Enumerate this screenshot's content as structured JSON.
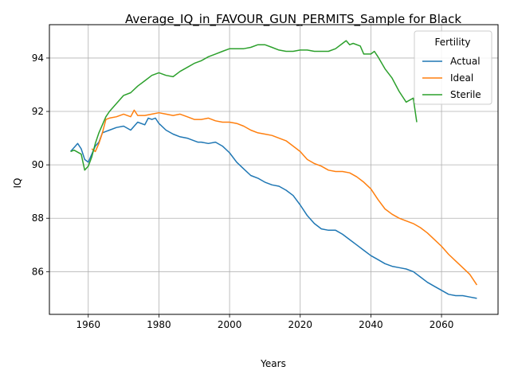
{
  "chart_data": {
    "type": "line",
    "title": "Average_IQ_in_FAVOUR_GUN_PERMITS_Sample for Black",
    "xlabel": "Years",
    "ylabel": "IQ",
    "xlim": [
      1949,
      2076
    ],
    "ylim": [
      84.4,
      95.25
    ],
    "xticks": [
      1960,
      1980,
      2000,
      2020,
      2040,
      2060
    ],
    "yticks": [
      86,
      88,
      90,
      92,
      94
    ],
    "grid": true,
    "legend": {
      "title": "Fertility",
      "placement": "top-right"
    },
    "series": [
      {
        "name": "Actual",
        "color": "#1f77b4",
        "x": [
          1955,
          1957,
          1958,
          1959,
          1960,
          1961,
          1962,
          1963,
          1964,
          1965,
          1966,
          1968,
          1970,
          1972,
          1974,
          1976,
          1977,
          1978,
          1979,
          1980,
          1982,
          1984,
          1986,
          1988,
          1990,
          1991,
          1992,
          1994,
          1996,
          1998,
          2000,
          2002,
          2004,
          2006,
          2008,
          2010,
          2012,
          2014,
          2016,
          2018,
          2020,
          2022,
          2024,
          2026,
          2028,
          2030,
          2032,
          2034,
          2036,
          2038,
          2040,
          2042,
          2044,
          2046,
          2048,
          2050,
          2052,
          2054,
          2056,
          2058,
          2060,
          2062,
          2064,
          2066,
          2068,
          2070
        ],
        "y": [
          90.5,
          90.8,
          90.6,
          90.2,
          90.1,
          90.4,
          90.7,
          90.85,
          91.2,
          91.25,
          91.3,
          91.4,
          91.45,
          91.3,
          91.6,
          91.5,
          91.75,
          91.7,
          91.75,
          91.55,
          91.3,
          91.15,
          91.05,
          91.0,
          90.9,
          90.85,
          90.85,
          90.8,
          90.85,
          90.7,
          90.45,
          90.1,
          89.85,
          89.6,
          89.5,
          89.35,
          89.25,
          89.2,
          89.05,
          88.85,
          88.5,
          88.1,
          87.8,
          87.6,
          87.55,
          87.55,
          87.4,
          87.2,
          87.0,
          86.8,
          86.6,
          86.45,
          86.3,
          86.2,
          86.15,
          86.1,
          86.0,
          85.8,
          85.6,
          85.45,
          85.3,
          85.15,
          85.1,
          85.1,
          85.05,
          85.0
        ]
      },
      {
        "name": "Ideal",
        "color": "#ff7f0e",
        "x": [
          1961,
          1962,
          1963,
          1964,
          1965,
          1966,
          1968,
          1970,
          1972,
          1973,
          1974,
          1976,
          1978,
          1980,
          1982,
          1984,
          1986,
          1988,
          1990,
          1992,
          1994,
          1996,
          1998,
          2000,
          2002,
          2004,
          2006,
          2008,
          2010,
          2012,
          2014,
          2016,
          2018,
          2020,
          2022,
          2024,
          2026,
          2028,
          2030,
          2032,
          2034,
          2036,
          2038,
          2040,
          2042,
          2044,
          2046,
          2048,
          2050,
          2052,
          2054,
          2056,
          2058,
          2060,
          2062,
          2064,
          2066,
          2068,
          2070
        ],
        "y": [
          90.6,
          90.5,
          90.8,
          91.2,
          91.7,
          91.75,
          91.8,
          91.9,
          91.8,
          92.05,
          91.85,
          91.85,
          91.9,
          91.95,
          91.9,
          91.85,
          91.9,
          91.8,
          91.7,
          91.7,
          91.75,
          91.65,
          91.6,
          91.6,
          91.55,
          91.45,
          91.3,
          91.2,
          91.15,
          91.1,
          91.0,
          90.9,
          90.7,
          90.5,
          90.2,
          90.05,
          89.95,
          89.8,
          89.75,
          89.75,
          89.7,
          89.55,
          89.35,
          89.1,
          88.7,
          88.35,
          88.15,
          88.0,
          87.9,
          87.8,
          87.65,
          87.45,
          87.2,
          86.95,
          86.65,
          86.4,
          86.15,
          85.9,
          85.5
        ]
      },
      {
        "name": "Sterile",
        "color": "#2ca02c",
        "x": [
          1955,
          1956,
          1958,
          1959,
          1960,
          1961,
          1962,
          1963,
          1964,
          1965,
          1966,
          1968,
          1970,
          1972,
          1974,
          1976,
          1978,
          1980,
          1982,
          1984,
          1986,
          1988,
          1990,
          1992,
          1994,
          1996,
          1998,
          2000,
          2002,
          2004,
          2006,
          2008,
          2010,
          2012,
          2014,
          2016,
          2018,
          2020,
          2022,
          2024,
          2026,
          2028,
          2030,
          2032,
          2033,
          2034,
          2035,
          2037,
          2038,
          2040,
          2041,
          2042,
          2044,
          2046,
          2048,
          2050,
          2052,
          2053
        ],
        "y": [
          90.5,
          90.55,
          90.4,
          89.8,
          89.95,
          90.3,
          90.8,
          91.2,
          91.5,
          91.8,
          92.0,
          92.3,
          92.6,
          92.7,
          92.95,
          93.15,
          93.35,
          93.45,
          93.35,
          93.3,
          93.5,
          93.65,
          93.8,
          93.9,
          94.05,
          94.15,
          94.25,
          94.35,
          94.35,
          94.35,
          94.4,
          94.5,
          94.5,
          94.4,
          94.3,
          94.25,
          94.25,
          94.3,
          94.3,
          94.25,
          94.25,
          94.25,
          94.35,
          94.55,
          94.65,
          94.5,
          94.55,
          94.45,
          94.15,
          94.15,
          94.25,
          94.05,
          93.6,
          93.25,
          92.75,
          92.35,
          92.5,
          91.6
        ]
      }
    ]
  }
}
